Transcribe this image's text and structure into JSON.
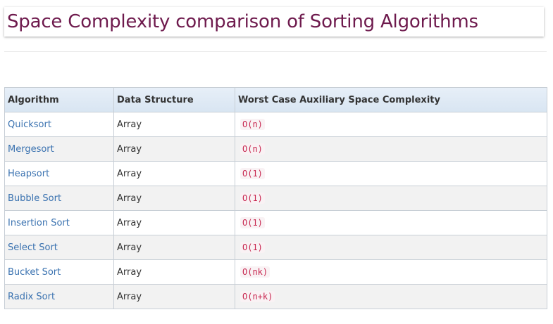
{
  "page": {
    "title": "Space Complexity comparison of Sorting Algorithms",
    "title_color": "#6e1a4d",
    "link_color": "#3a72b0",
    "code_color": "#c7254e"
  },
  "table": {
    "headers": [
      "Algorithm",
      "Data Structure",
      "Worst Case Auxiliary Space Complexity"
    ],
    "rows": [
      {
        "algorithm": "Quicksort",
        "structure": "Array",
        "complexity": "O(n)"
      },
      {
        "algorithm": "Mergesort",
        "structure": "Array",
        "complexity": "O(n)"
      },
      {
        "algorithm": "Heapsort",
        "structure": "Array",
        "complexity": "O(1)"
      },
      {
        "algorithm": "Bubble Sort",
        "structure": "Array",
        "complexity": "O(1)"
      },
      {
        "algorithm": "Insertion Sort",
        "structure": "Array",
        "complexity": "O(1)"
      },
      {
        "algorithm": "Select Sort",
        "structure": "Array",
        "complexity": "O(1)"
      },
      {
        "algorithm": "Bucket Sort",
        "structure": "Array",
        "complexity": "O(nk)"
      },
      {
        "algorithm": "Radix Sort",
        "structure": "Array",
        "complexity": "O(n+k)"
      }
    ]
  }
}
